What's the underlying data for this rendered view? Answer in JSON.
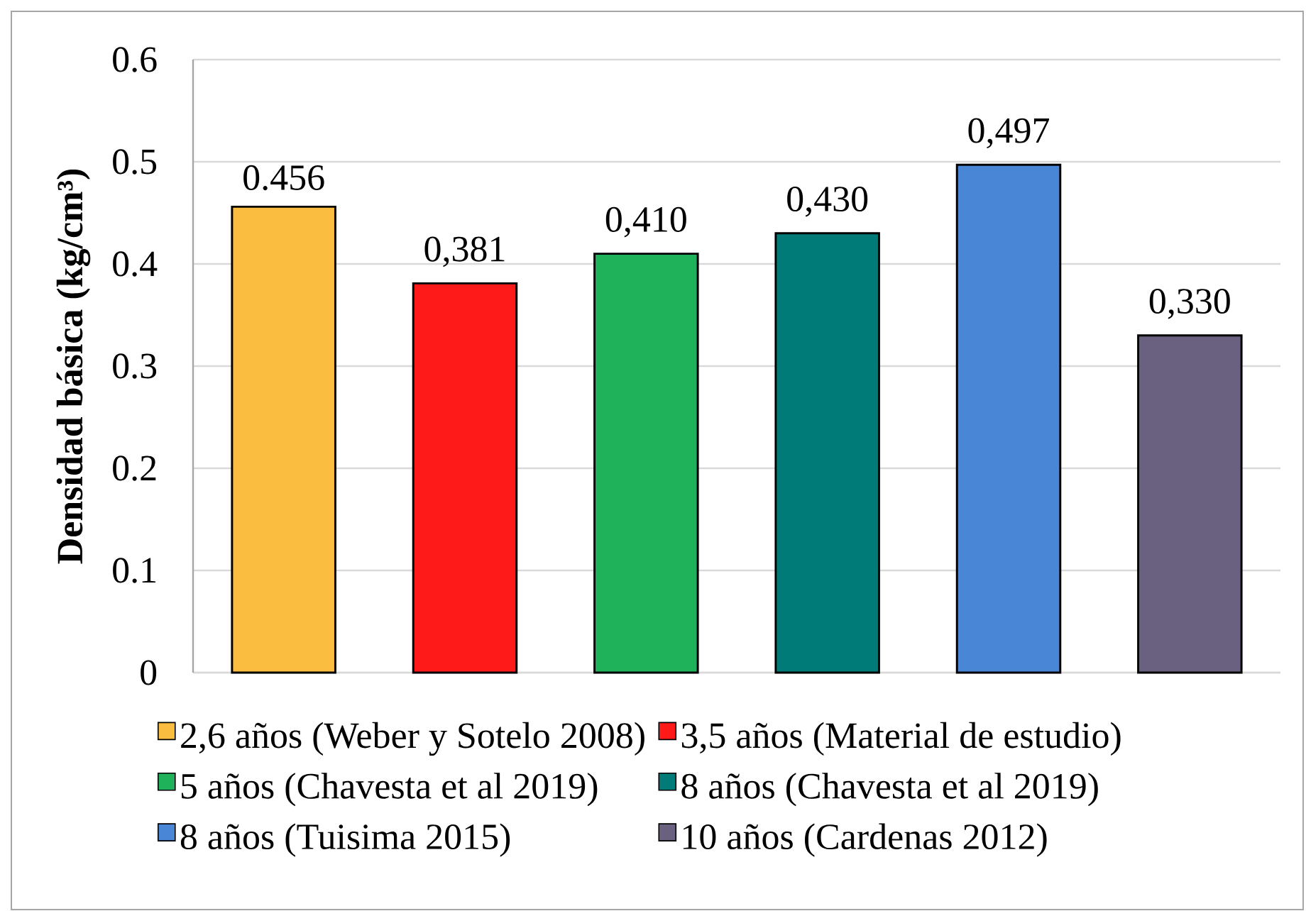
{
  "chart_data": {
    "type": "bar",
    "ylabel": "Densidad básica (kg/cm³)",
    "categories": [
      null,
      null,
      null,
      null,
      null,
      null
    ],
    "series": [
      {
        "name": "2,6 años (Weber y Sotelo 2008)",
        "color": "#fbbd3f",
        "values": [
          0.456,
          null,
          null,
          null,
          null,
          null
        ],
        "value_labels": [
          "0.456",
          null,
          null,
          null,
          null,
          null
        ]
      },
      {
        "name": "3,5 años (Material de estudio)",
        "color": "#ff1a1a",
        "values": [
          null,
          0.381,
          null,
          null,
          null,
          null
        ],
        "value_labels": [
          null,
          "0,381",
          null,
          null,
          null,
          null
        ]
      },
      {
        "name": "5 años (Chavesta et al 2019)",
        "color": "#1fb25a",
        "values": [
          null,
          null,
          0.41,
          null,
          null,
          null
        ],
        "value_labels": [
          null,
          null,
          "0,410",
          null,
          null,
          null
        ]
      },
      {
        "name": "8 años (Chavesta et al 2019)",
        "color": "#007b78",
        "values": [
          null,
          null,
          null,
          0.43,
          null,
          null
        ],
        "value_labels": [
          null,
          null,
          null,
          "0,430",
          null,
          null
        ]
      },
      {
        "name": "8 años (Tuisima 2015)",
        "color": "#4a86d6",
        "values": [
          null,
          null,
          null,
          null,
          0.497,
          null
        ],
        "value_labels": [
          null,
          null,
          null,
          null,
          "0,497",
          null
        ]
      },
      {
        "name": "10 años (Cardenas 2012)",
        "color": "#6a6080",
        "values": [
          null,
          null,
          null,
          null,
          null,
          0.33
        ],
        "value_labels": [
          null,
          null,
          null,
          null,
          null,
          "0,330"
        ]
      }
    ],
    "ylim": [
      0,
      0.6
    ],
    "yticks": [
      0,
      0.1,
      0.2,
      0.3,
      0.4,
      0.5,
      0.6
    ],
    "grid": "y",
    "legend": "bottom"
  }
}
